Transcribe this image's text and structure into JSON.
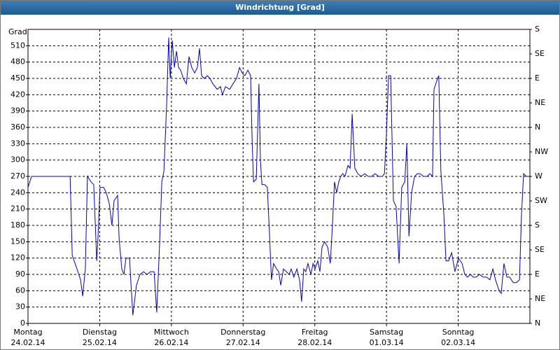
{
  "chart_data": {
    "type": "line",
    "title": "Windrichtung [Grad]",
    "y_label": "Grad",
    "color": "#0000cc",
    "xlim": [
      0,
      168
    ],
    "ylim": [
      0,
      540
    ],
    "y2lim": [
      0,
      540
    ],
    "xticks": [
      {
        "value": 0,
        "label": "Montag"
      },
      {
        "value": 24,
        "label": "Dienstag"
      },
      {
        "value": 48,
        "label": "Mittwoch"
      },
      {
        "value": 72,
        "label": "Donnerstag"
      },
      {
        "value": 96,
        "label": "Freitag"
      },
      {
        "value": 120,
        "label": "Samstag"
      },
      {
        "value": 144,
        "label": "Sonntag"
      }
    ],
    "xtick_dates": [
      "24.02.14",
      "25.02.14",
      "26.02.14",
      "27.02.14",
      "28.02.14",
      "01.03.14",
      "02.03.14"
    ],
    "yticks": [
      0,
      30,
      60,
      90,
      120,
      150,
      180,
      210,
      240,
      270,
      300,
      330,
      360,
      390,
      420,
      450,
      480,
      510
    ],
    "y2ticks": [
      {
        "value": 0,
        "label": "N"
      },
      {
        "value": 45,
        "label": "NE"
      },
      {
        "value": 90,
        "label": "E"
      },
      {
        "value": 135,
        "label": "SE"
      },
      {
        "value": 180,
        "label": "S"
      },
      {
        "value": 225,
        "label": "SW"
      },
      {
        "value": 270,
        "label": "W"
      },
      {
        "value": 315,
        "label": "NW"
      },
      {
        "value": 360,
        "label": "N"
      },
      {
        "value": 405,
        "label": "NE"
      },
      {
        "value": 450,
        "label": "E"
      },
      {
        "value": 495,
        "label": "SE"
      },
      {
        "value": 540,
        "label": "S"
      }
    ],
    "grid": true,
    "x": [
      0,
      1.2,
      14.1,
      14.8,
      16.4,
      17.6,
      18.3,
      19.2,
      19.9,
      21.1,
      22.0,
      23.0,
      23.4,
      24.1,
      25.3,
      26.2,
      27.2,
      28.1,
      28.8,
      30.0,
      30.5,
      31.4,
      32.1,
      32.8,
      34.0,
      34.4,
      35.1,
      36.3,
      37.5,
      38.7,
      39.8,
      41.0,
      42.2,
      43.1,
      44.0,
      44.8,
      45.5,
      46.4,
      47.1,
      47.6,
      48.3,
      49.0,
      49.7,
      50.4,
      51.1,
      52.0,
      53.0,
      53.9,
      54.8,
      55.8,
      56.7,
      57.4,
      58.1,
      59.0,
      60.0,
      60.9,
      61.9,
      63.3,
      64.4,
      65.1,
      66.1,
      67.5,
      68.6,
      69.8,
      70.8,
      71.7,
      72.6,
      73.6,
      74.5,
      75.0,
      75.5,
      76.4,
      77.3,
      77.8,
      78.3,
      79.2,
      80.1,
      80.8,
      81.5,
      82.2,
      83.2,
      83.9,
      84.6,
      85.5,
      86.5,
      87.4,
      88.1,
      89.0,
      90.0,
      90.9,
      91.6,
      92.3,
      93.0,
      93.7,
      94.7,
      95.4,
      96.1,
      97.0,
      97.7,
      98.4,
      99.3,
      100.3,
      101.2,
      101.9,
      102.6,
      103.3,
      104.0,
      104.7,
      105.4,
      106.1,
      107.1,
      107.8,
      108.5,
      109.4,
      110.4,
      111.5,
      112.7,
      113.9,
      115.0,
      116.2,
      117.4,
      118.6,
      119.3,
      120.0,
      120.7,
      121.4,
      122.3,
      123.2,
      124.2,
      125.1,
      126.1,
      126.8,
      127.5,
      128.4,
      129.4,
      130.3,
      131.2,
      132.4,
      133.6,
      134.5,
      135.4,
      135.9,
      136.8,
      137.5,
      138.2,
      139.2,
      139.9,
      140.8,
      141.8,
      142.9,
      144.1,
      145.3,
      146.2,
      147.1,
      148.1,
      149.0,
      150.0,
      151.1,
      152.3,
      153.5,
      154.6,
      155.6,
      156.5,
      157.7,
      158.4,
      159.3,
      160.3,
      161.2,
      162.4,
      163.5,
      164.5,
      165.2,
      165.9,
      166.8,
      167.7
    ],
    "values": [
      250,
      270,
      270,
      125,
      100,
      80,
      50,
      100,
      270,
      260,
      255,
      115,
      155,
      250,
      250,
      240,
      220,
      180,
      225,
      235,
      155,
      100,
      90,
      120,
      120,
      80,
      15,
      70,
      90,
      95,
      90,
      95,
      95,
      20,
      140,
      260,
      280,
      400,
      525,
      450,
      520,
      470,
      500,
      470,
      465,
      450,
      440,
      490,
      470,
      460,
      470,
      505,
      455,
      450,
      455,
      450,
      440,
      430,
      435,
      420,
      435,
      430,
      440,
      450,
      470,
      460,
      455,
      465,
      455,
      340,
      260,
      265,
      440,
      300,
      255,
      255,
      250,
      170,
      80,
      110,
      100,
      95,
      70,
      100,
      95,
      90,
      100,
      85,
      100,
      80,
      40,
      100,
      95,
      110,
      90,
      110,
      100,
      115,
      95,
      140,
      150,
      140,
      110,
      180,
      260,
      240,
      260,
      270,
      275,
      270,
      290,
      285,
      385,
      285,
      275,
      270,
      275,
      270,
      270,
      275,
      270,
      270,
      275,
      350,
      455,
      455,
      225,
      215,
      110,
      250,
      260,
      330,
      160,
      240,
      270,
      275,
      275,
      270,
      270,
      275,
      270,
      430,
      445,
      455,
      280,
      200,
      115,
      115,
      130,
      95,
      120,
      110,
      90,
      85,
      90,
      85,
      85,
      90,
      85,
      85,
      80,
      100,
      80,
      60,
      55,
      110,
      85,
      85,
      75,
      75,
      80,
      200,
      275,
      270,
      270
    ]
  }
}
